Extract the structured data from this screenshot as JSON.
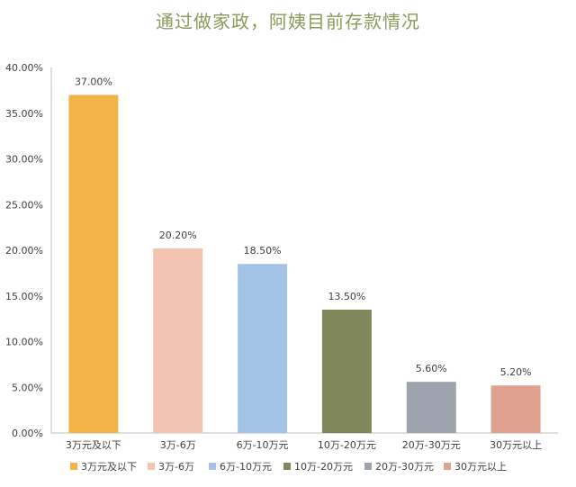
{
  "chart_data": {
    "type": "bar",
    "title": "通过做家政，阿姨目前存款情况",
    "categories": [
      "3万元及以下",
      "3万-6万",
      "6万-10万元",
      "10万-20万元",
      "20万-30万元",
      "30万元以上"
    ],
    "values": [
      37.0,
      20.2,
      18.5,
      13.5,
      5.6,
      5.2
    ],
    "data_labels": [
      "37.00%",
      "20.20%",
      "18.50%",
      "13.50%",
      "5.60%",
      "5.20%"
    ],
    "colors": [
      "#F2B446",
      "#F4C4B2",
      "#A3C3E6",
      "#7F875B",
      "#9DA3AC",
      "#E0A28E"
    ],
    "ylim": [
      0,
      40
    ],
    "y_ticks": [
      0,
      5,
      10,
      15,
      20,
      25,
      30,
      35,
      40
    ],
    "y_tick_labels": [
      "0.00%",
      "5.00%",
      "10.00%",
      "15.00%",
      "20.00%",
      "25.00%",
      "30.00%",
      "35.00%",
      "40.00%"
    ],
    "legend": {
      "position": "bottom",
      "entries": [
        "3万元及以下",
        "3万-6万",
        "6万-10万元",
        "10万-20万元",
        "20万-30万元",
        "30万元以上"
      ]
    },
    "grid": false,
    "xlabel": "",
    "ylabel": ""
  }
}
